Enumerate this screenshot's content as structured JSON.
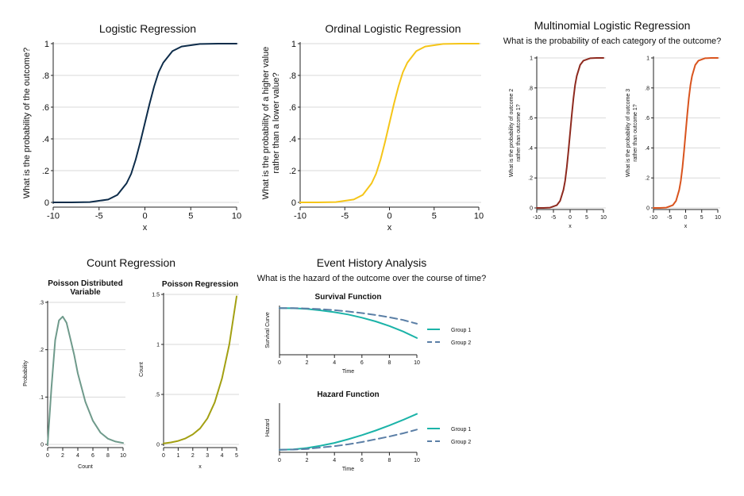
{
  "titles": {
    "logistic": "Logistic Regression",
    "ordinal": "Ordinal Logistic Regression",
    "multinomial": "Multinomial Logistic Regression",
    "multinomial_sub": "What is the probability of each category of the outcome?",
    "count": "Count Regression",
    "eha": "Event History Analysis",
    "eha_sub": "What is the hazard of the outcome over the course of time?"
  },
  "chart_data": [
    {
      "id": "logistic",
      "type": "line",
      "title": "",
      "xlabel": "x",
      "ylabel": "What is the probability of the outcome?",
      "xlim": [
        -10,
        10
      ],
      "ylim": [
        0,
        1
      ],
      "xticks": [
        "-10",
        "-5",
        "0",
        "5",
        "10"
      ],
      "yticks": [
        "0",
        ".2",
        ".4",
        ".6",
        ".8",
        "1"
      ],
      "grid": true,
      "series": [
        {
          "color": "#0d2c4a",
          "x": [
            -10,
            -8,
            -6,
            -4,
            -3,
            -2,
            -1.5,
            -1,
            -0.5,
            0,
            0.5,
            1,
            1.5,
            2,
            3,
            4,
            6,
            8,
            10
          ],
          "y": [
            0,
            0,
            0.002,
            0.018,
            0.047,
            0.12,
            0.18,
            0.27,
            0.38,
            0.5,
            0.62,
            0.73,
            0.82,
            0.88,
            0.953,
            0.982,
            0.998,
            1,
            1
          ]
        }
      ]
    },
    {
      "id": "ordinal",
      "type": "line",
      "title": "",
      "xlabel": "x",
      "ylabel": "What is the probability of a higher value rather than a lower value?",
      "xlim": [
        -10,
        10
      ],
      "ylim": [
        0,
        1
      ],
      "xticks": [
        "-10",
        "-5",
        "0",
        "5",
        "10"
      ],
      "yticks": [
        "0",
        ".2",
        ".4",
        ".6",
        ".8",
        "1"
      ],
      "grid": true,
      "series": [
        {
          "color": "#f5c518",
          "x": [
            -10,
            -8,
            -6,
            -4,
            -3,
            -2,
            -1.5,
            -1,
            -0.5,
            0,
            0.5,
            1,
            1.5,
            2,
            3,
            4,
            6,
            8,
            10
          ],
          "y": [
            0,
            0,
            0.002,
            0.018,
            0.047,
            0.12,
            0.18,
            0.27,
            0.38,
            0.5,
            0.62,
            0.73,
            0.82,
            0.88,
            0.953,
            0.982,
            0.998,
            1,
            1
          ]
        }
      ]
    },
    {
      "id": "multi2",
      "type": "line",
      "title": "",
      "xlabel": "x",
      "ylabel": "What is the probability of outcome 2 rather than outcome 1?",
      "xlim": [
        -10,
        10
      ],
      "ylim": [
        0,
        1
      ],
      "xticks": [
        "-10",
        "-5",
        "0",
        "5",
        "10"
      ],
      "yticks": [
        "0",
        ".2",
        ".4",
        ".6",
        ".8",
        "1"
      ],
      "grid": true,
      "series": [
        {
          "color": "#8e2a1f",
          "x": [
            -10,
            -8,
            -6,
            -4,
            -3,
            -2,
            -1.5,
            -1,
            -0.5,
            0,
            0.5,
            1,
            1.5,
            2,
            3,
            4,
            6,
            8,
            10
          ],
          "y": [
            0,
            0,
            0.002,
            0.018,
            0.047,
            0.12,
            0.18,
            0.27,
            0.38,
            0.5,
            0.62,
            0.73,
            0.82,
            0.88,
            0.953,
            0.982,
            0.998,
            1,
            1
          ]
        }
      ]
    },
    {
      "id": "multi3",
      "type": "line",
      "title": "",
      "xlabel": "x",
      "ylabel": "What is the probability of outcome 3 rather than outcome 1?",
      "xlim": [
        -10,
        10
      ],
      "ylim": [
        0,
        1
      ],
      "xticks": [
        "-10",
        "-5",
        "0",
        "5",
        "10"
      ],
      "yticks": [
        "0",
        ".2",
        ".4",
        ".6",
        ".8",
        "1"
      ],
      "grid": true,
      "series": [
        {
          "color": "#d9541e",
          "x": [
            -10,
            -8,
            -6,
            -4,
            -3,
            -2,
            -1.5,
            -1,
            -0.5,
            0,
            0.5,
            1,
            1.5,
            2,
            3,
            4,
            6,
            8,
            10
          ],
          "y": [
            0,
            0,
            0.002,
            0.018,
            0.047,
            0.12,
            0.18,
            0.27,
            0.38,
            0.5,
            0.62,
            0.73,
            0.82,
            0.88,
            0.953,
            0.982,
            0.998,
            1,
            1
          ]
        }
      ]
    },
    {
      "id": "poisson_dist",
      "type": "line",
      "title": "Poisson Distributed Variable",
      "xlabel": "Count",
      "ylabel": "Probability",
      "xlim": [
        0,
        10
      ],
      "ylim": [
        0,
        0.3
      ],
      "xticks": [
        "0",
        "2",
        "4",
        "6",
        "8",
        "10"
      ],
      "yticks": [
        "0",
        ".1",
        ".2",
        ".3"
      ],
      "grid": true,
      "series": [
        {
          "color": "#6f9a8b",
          "x": [
            0,
            0.5,
            1,
            1.5,
            2,
            2.5,
            3,
            3.5,
            4,
            5,
            6,
            7,
            8,
            9,
            10
          ],
          "y": [
            0,
            0.12,
            0.22,
            0.262,
            0.27,
            0.257,
            0.224,
            0.19,
            0.15,
            0.09,
            0.05,
            0.025,
            0.012,
            0.006,
            0.003
          ]
        }
      ]
    },
    {
      "id": "poisson_reg",
      "type": "line",
      "title": "Poisson Regression",
      "xlabel": "x",
      "ylabel": "Count",
      "xlim": [
        0,
        5
      ],
      "ylim": [
        0,
        1.5
      ],
      "xticks": [
        "0",
        "1",
        "2",
        "3",
        "4",
        "5"
      ],
      "yticks": [
        "0",
        ".5",
        "1",
        "1.5"
      ],
      "grid": true,
      "series": [
        {
          "color": "#a3a012",
          "x": [
            0,
            0.5,
            1,
            1.5,
            2,
            2.5,
            3,
            3.5,
            4,
            4.5,
            5
          ],
          "y": [
            0.01,
            0.02,
            0.035,
            0.06,
            0.1,
            0.16,
            0.26,
            0.42,
            0.66,
            1.0,
            1.48
          ]
        }
      ]
    },
    {
      "id": "survival",
      "type": "line",
      "title": "Survival Function",
      "xlabel": "Time",
      "ylabel": "Survival Curve",
      "xlim": [
        0,
        10
      ],
      "ylim": [
        0,
        1
      ],
      "xticks": [
        "0",
        "2",
        "4",
        "6",
        "8",
        "10"
      ],
      "yticks": [],
      "grid": false,
      "series": [
        {
          "name": "Group 1",
          "color": "#1bb3a8",
          "dash": false,
          "x": [
            0,
            1,
            2,
            3,
            4,
            5,
            6,
            7,
            8,
            9,
            10
          ],
          "y": [
            0.98,
            0.975,
            0.96,
            0.93,
            0.89,
            0.84,
            0.77,
            0.69,
            0.59,
            0.47,
            0.33
          ]
        },
        {
          "name": "Group 2",
          "color": "#5b7fa6",
          "dash": true,
          "x": [
            0,
            1,
            2,
            3,
            4,
            5,
            6,
            7,
            8,
            9,
            10
          ],
          "y": [
            0.98,
            0.978,
            0.97,
            0.955,
            0.935,
            0.905,
            0.87,
            0.83,
            0.78,
            0.72,
            0.64
          ]
        }
      ]
    },
    {
      "id": "hazard",
      "type": "line",
      "title": "Hazard Function",
      "xlabel": "Time",
      "ylabel": "Hazard",
      "xlim": [
        0,
        10
      ],
      "ylim": [
        0,
        1
      ],
      "xticks": [
        "0",
        "2",
        "4",
        "6",
        "8",
        "10"
      ],
      "yticks": [],
      "grid": false,
      "series": [
        {
          "name": "Group 1",
          "color": "#1bb3a8",
          "dash": false,
          "x": [
            0,
            1,
            2,
            3,
            4,
            5,
            6,
            7,
            8,
            9,
            10
          ],
          "y": [
            0.02,
            0.03,
            0.06,
            0.11,
            0.17,
            0.25,
            0.34,
            0.44,
            0.55,
            0.67,
            0.8
          ]
        },
        {
          "name": "Group 2",
          "color": "#5b7fa6",
          "dash": true,
          "x": [
            0,
            1,
            2,
            3,
            4,
            5,
            6,
            7,
            8,
            9,
            10
          ],
          "y": [
            0.02,
            0.025,
            0.04,
            0.07,
            0.1,
            0.14,
            0.19,
            0.25,
            0.31,
            0.38,
            0.46
          ]
        }
      ]
    }
  ]
}
